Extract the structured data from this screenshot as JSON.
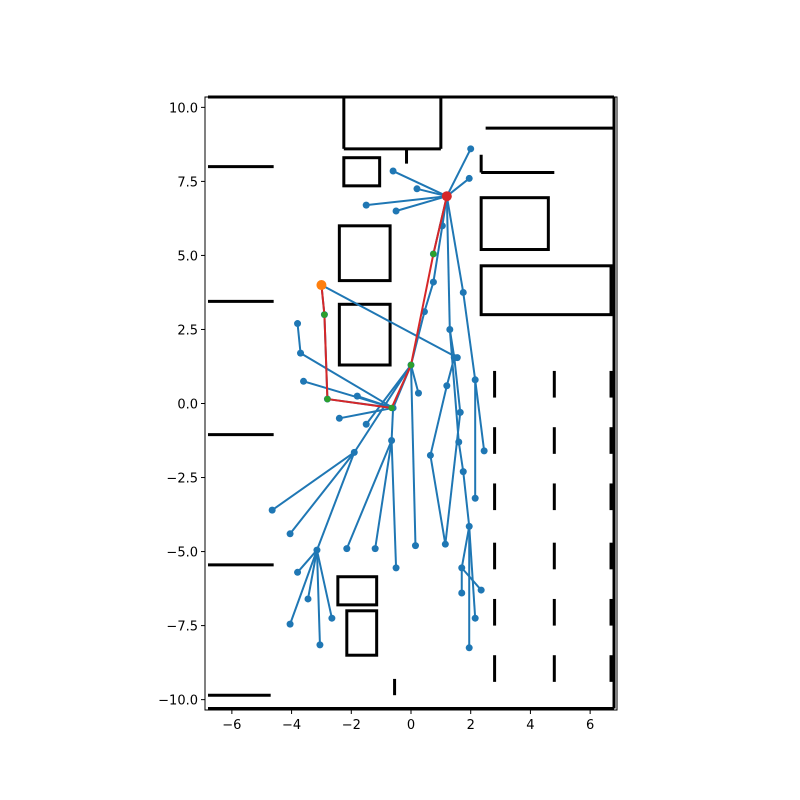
{
  "chart_data": {
    "type": "scatter",
    "title": "",
    "xlabel": "",
    "ylabel": "",
    "xlim": [
      -6.9,
      6.9
    ],
    "ylim": [
      -10.35,
      10.35
    ],
    "grid": false,
    "x_ticks": [
      -6,
      -4,
      -2,
      0,
      2,
      4,
      6
    ],
    "x_tick_labels": [
      "−6",
      "−4",
      "−2",
      "0",
      "2",
      "4",
      "6"
    ],
    "y_ticks": [
      10,
      7.5,
      5,
      2.5,
      0,
      -2.5,
      -5,
      -7.5,
      -10
    ],
    "y_tick_labels": [
      "10.0",
      "7.5",
      "5.0",
      "2.5",
      "0.0",
      "−2.5",
      "−5.0",
      "−7.5",
      "−10.0"
    ],
    "colors": {
      "tree": "#1f77b4",
      "path": "#d62728",
      "waypoint": "#2ca02c",
      "start": "#ff7f0e",
      "goal": "#d62728",
      "map": "#000000"
    },
    "nodes": [
      [
        1.2,
        7.0
      ],
      [
        2.0,
        8.6
      ],
      [
        1.95,
        7.6
      ],
      [
        -0.6,
        7.85
      ],
      [
        0.2,
        7.25
      ],
      [
        -1.5,
        6.7
      ],
      [
        -0.5,
        6.5
      ],
      [
        1.05,
        6.0
      ],
      [
        -3.0,
        4.0
      ],
      [
        0.75,
        5.05
      ],
      [
        0.75,
        4.1
      ],
      [
        0.45,
        3.1
      ],
      [
        0.0,
        1.3
      ],
      [
        -2.9,
        3.0
      ],
      [
        -3.8,
        2.7
      ],
      [
        -3.7,
        1.7
      ],
      [
        -3.6,
        0.75
      ],
      [
        -2.8,
        0.15
      ],
      [
        -1.8,
        0.25
      ],
      [
        -0.6,
        -0.15
      ],
      [
        -2.4,
        -0.5
      ],
      [
        -1.5,
        -0.7
      ],
      [
        0.25,
        0.35
      ],
      [
        1.75,
        3.75
      ],
      [
        1.3,
        2.5
      ],
      [
        1.45,
        1.55
      ],
      [
        1.55,
        1.55
      ],
      [
        1.2,
        0.6
      ],
      [
        1.65,
        -0.3
      ],
      [
        2.15,
        0.8
      ],
      [
        2.45,
        -1.6
      ],
      [
        1.6,
        -1.3
      ],
      [
        2.15,
        -3.2
      ],
      [
        1.75,
        -2.3
      ],
      [
        0.65,
        -1.75
      ],
      [
        1.15,
        -4.75
      ],
      [
        1.95,
        -4.15
      ],
      [
        1.7,
        -5.55
      ],
      [
        1.7,
        -6.4
      ],
      [
        2.35,
        -6.3
      ],
      [
        2.15,
        -7.25
      ],
      [
        1.95,
        -8.25
      ],
      [
        -0.65,
        -1.25
      ],
      [
        -1.9,
        -1.65
      ],
      [
        -4.65,
        -3.6
      ],
      [
        -4.05,
        -4.4
      ],
      [
        -3.15,
        -4.95
      ],
      [
        -3.8,
        -5.7
      ],
      [
        -3.45,
        -6.6
      ],
      [
        -2.65,
        -7.25
      ],
      [
        -4.05,
        -7.45
      ],
      [
        -3.05,
        -8.15
      ],
      [
        -1.2,
        -4.9
      ],
      [
        -2.15,
        -4.9
      ],
      [
        0.15,
        -4.8
      ],
      [
        -0.5,
        -5.55
      ]
    ],
    "edges": [
      [
        0,
        1
      ],
      [
        0,
        2
      ],
      [
        0,
        3
      ],
      [
        0,
        4
      ],
      [
        0,
        5
      ],
      [
        0,
        6
      ],
      [
        0,
        7
      ],
      [
        0,
        9
      ],
      [
        0,
        23
      ],
      [
        0,
        24
      ],
      [
        7,
        10
      ],
      [
        10,
        11
      ],
      [
        11,
        12
      ],
      [
        12,
        19
      ],
      [
        12,
        22
      ],
      [
        8,
        26
      ],
      [
        8,
        13
      ],
      [
        13,
        17
      ],
      [
        17,
        19
      ],
      [
        14,
        15
      ],
      [
        15,
        19
      ],
      [
        16,
        19
      ],
      [
        18,
        19
      ],
      [
        20,
        19
      ],
      [
        21,
        12
      ],
      [
        24,
        25
      ],
      [
        23,
        29
      ],
      [
        29,
        30
      ],
      [
        29,
        32
      ],
      [
        25,
        28
      ],
      [
        25,
        27
      ],
      [
        24,
        31
      ],
      [
        31,
        33
      ],
      [
        33,
        36
      ],
      [
        36,
        37
      ],
      [
        37,
        38
      ],
      [
        37,
        39
      ],
      [
        36,
        40
      ],
      [
        36,
        41
      ],
      [
        27,
        34
      ],
      [
        34,
        35
      ],
      [
        28,
        35
      ],
      [
        19,
        42
      ],
      [
        42,
        52
      ],
      [
        42,
        53
      ],
      [
        12,
        54
      ],
      [
        42,
        55
      ],
      [
        12,
        43
      ],
      [
        43,
        44
      ],
      [
        43,
        45
      ],
      [
        43,
        46
      ],
      [
        46,
        47
      ],
      [
        46,
        48
      ],
      [
        46,
        49
      ],
      [
        46,
        50
      ],
      [
        46,
        51
      ]
    ],
    "path": [
      [
        1.2,
        7.0
      ],
      [
        0.75,
        5.05
      ],
      [
        0.0,
        1.3
      ],
      [
        -0.65,
        -0.15
      ],
      [
        -2.8,
        0.15
      ],
      [
        -2.9,
        3.0
      ],
      [
        -3.0,
        4.0
      ]
    ],
    "start": [
      1.2,
      7.0
    ],
    "goal": [
      -3.0,
      4.0
    ],
    "obstacle_boxes": [
      [
        -2.25,
        8.3,
        -1.05,
        7.35
      ],
      [
        -2.4,
        6.0,
        -0.7,
        4.15
      ],
      [
        -2.4,
        3.35,
        -0.7,
        1.3
      ],
      [
        -2.45,
        -5.85,
        -1.15,
        -6.8
      ],
      [
        -2.15,
        -7.0,
        -1.15,
        -8.5
      ],
      [
        2.35,
        6.95,
        4.6,
        5.2
      ],
      [
        2.35,
        4.65,
        6.7,
        3.0
      ]
    ],
    "obstacle_lines": [
      [
        -6.8,
        8.0,
        -4.6,
        8.0
      ],
      [
        -6.8,
        3.45,
        -4.6,
        3.45
      ],
      [
        -6.8,
        -1.05,
        -4.6,
        -1.05
      ],
      [
        -6.8,
        -5.45,
        -4.6,
        -5.45
      ],
      [
        -6.8,
        -9.85,
        -4.7,
        -9.85
      ],
      [
        -6.8,
        -10.3,
        6.8,
        -10.3
      ],
      [
        -6.8,
        10.35,
        6.8,
        10.35
      ],
      [
        6.8,
        10.35,
        6.8,
        -10.3
      ],
      [
        -2.25,
        10.3,
        -2.25,
        8.6
      ],
      [
        -2.25,
        8.6,
        1.0,
        8.6
      ],
      [
        1.0,
        8.6,
        1.0,
        10.3
      ],
      [
        -0.15,
        8.6,
        -0.15,
        8.1
      ],
      [
        2.5,
        9.3,
        6.8,
        9.3
      ],
      [
        2.35,
        8.4,
        2.35,
        7.8
      ],
      [
        2.35,
        7.8,
        4.8,
        7.8
      ]
    ],
    "obstacle_dashes": [
      [
        2.8,
        1.1,
        2.8,
        0.2
      ],
      [
        2.8,
        -0.8,
        2.8,
        -1.7
      ],
      [
        2.8,
        -2.7,
        2.8,
        -3.6
      ],
      [
        2.8,
        -4.7,
        2.8,
        -5.6
      ],
      [
        2.8,
        -6.6,
        2.8,
        -7.5
      ],
      [
        2.8,
        -8.5,
        2.8,
        -9.4
      ],
      [
        4.8,
        1.1,
        4.8,
        0.2
      ],
      [
        4.8,
        -0.8,
        4.8,
        -1.7
      ],
      [
        4.8,
        -2.7,
        4.8,
        -3.6
      ],
      [
        4.8,
        -4.7,
        4.8,
        -5.6
      ],
      [
        4.8,
        -6.6,
        4.8,
        -7.5
      ],
      [
        4.8,
        -8.5,
        4.8,
        -9.4
      ],
      [
        6.7,
        1.1,
        6.7,
        0.2
      ],
      [
        6.7,
        -0.8,
        6.7,
        -1.7
      ],
      [
        6.7,
        -2.7,
        6.7,
        -3.6
      ],
      [
        6.7,
        -4.7,
        6.7,
        -5.6
      ],
      [
        6.7,
        -6.6,
        6.7,
        -7.5
      ],
      [
        6.7,
        -8.5,
        6.7,
        -9.4
      ],
      [
        -0.55,
        -9.3,
        -0.55,
        -9.85
      ]
    ]
  }
}
